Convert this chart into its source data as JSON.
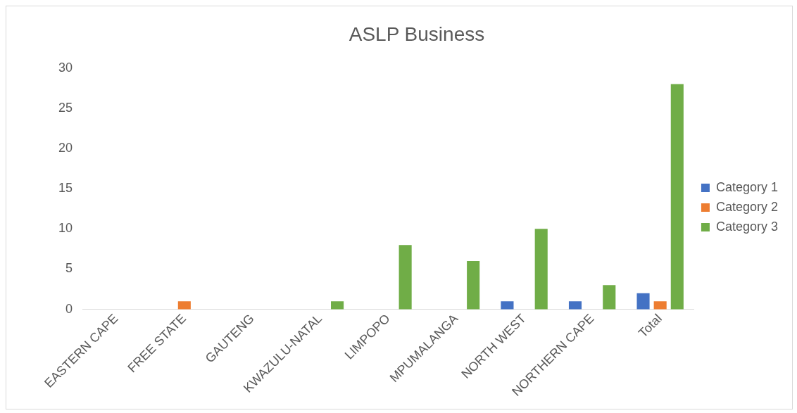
{
  "chart_data": {
    "type": "bar",
    "title": "ASLP Business",
    "categories": [
      "EASTERN CAPE",
      "FREE STATE",
      "GAUTENG",
      "KWAZULU-NATAL",
      "LIMPOPO",
      "MPUMALANGA",
      "NORTH WEST",
      "NORTHERN CAPE",
      "Total"
    ],
    "series": [
      {
        "name": "Category 1",
        "color": "#4472c4",
        "values": [
          0,
          0,
          0,
          0,
          0,
          0,
          1,
          1,
          2
        ]
      },
      {
        "name": "Category 2",
        "color": "#ed7d31",
        "values": [
          0,
          1,
          0,
          0,
          0,
          0,
          0,
          0,
          1
        ]
      },
      {
        "name": "Category 3",
        "color": "#70ad47",
        "values": [
          0,
          0,
          0,
          1,
          8,
          6,
          10,
          3,
          28
        ]
      }
    ],
    "ylim": [
      0,
      30
    ],
    "yticks": [
      0,
      5,
      10,
      15,
      20,
      25,
      30
    ],
    "grid": false,
    "legend": "right"
  }
}
